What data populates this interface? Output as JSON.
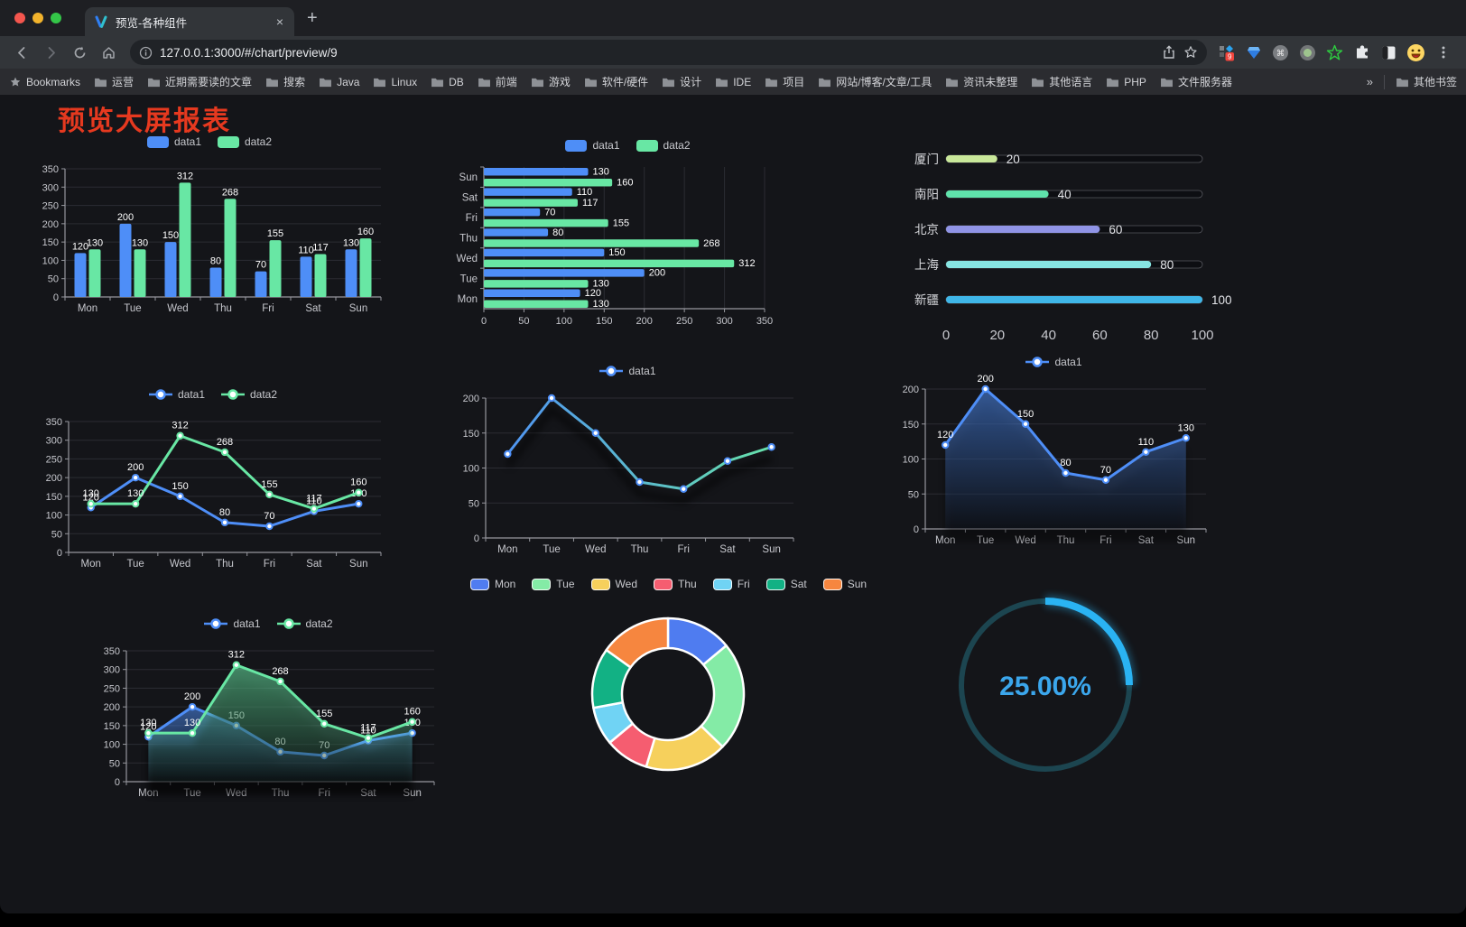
{
  "browser": {
    "tab": {
      "title": "预览-各种组件",
      "close": "×",
      "new_tab": "+"
    },
    "url": "127.0.0.1:3000/#/chart/preview/9",
    "extension_badge": "9",
    "bookmarks_label": "Bookmarks",
    "bookmarks": [
      "运营",
      "近期需要读的文章",
      "搜索",
      "Java",
      "Linux",
      "DB",
      "前端",
      "游戏",
      "软件/硬件",
      "设计",
      "IDE",
      "项目",
      "网站/博客/文章/工具",
      "资讯未整理",
      "其他语言",
      "PHP",
      "文件服务器"
    ],
    "bookmarks_overflow": "»",
    "other_bookmarks": "其他书签"
  },
  "page": {
    "title": "预览大屏报表",
    "title_color": "#e6391f"
  },
  "theme": {
    "axis": "#96979e",
    "grid": "#2b2c33",
    "tick_text": "#c6c7cd",
    "value_text": "#ffffff",
    "blue": "#4e8ef7",
    "green": "#68e7a4"
  },
  "chart_data": [
    {
      "id": "bar-grouped",
      "type": "bar",
      "legend": true,
      "labels": true,
      "categories": [
        "Mon",
        "Tue",
        "Wed",
        "Thu",
        "Fri",
        "Sat",
        "Sun"
      ],
      "series": [
        {
          "name": "data1",
          "color": "#4e8ef7",
          "values": [
            120,
            200,
            150,
            80,
            70,
            110,
            130
          ]
        },
        {
          "name": "data2",
          "color": "#68e7a4",
          "values": [
            130,
            130,
            312,
            268,
            155,
            117,
            160
          ]
        }
      ],
      "ylim": [
        0,
        350
      ],
      "ystep": 50
    },
    {
      "id": "bar-horizontal",
      "type": "bar-horizontal",
      "legend": true,
      "labels": true,
      "categories": [
        "Mon",
        "Tue",
        "Wed",
        "Thu",
        "Fri",
        "Sat",
        "Sun"
      ],
      "series": [
        {
          "name": "data1",
          "color": "#4e8ef7",
          "values": [
            120,
            200,
            150,
            80,
            70,
            110,
            130
          ]
        },
        {
          "name": "data2",
          "color": "#68e7a4",
          "values": [
            130,
            130,
            312,
            268,
            155,
            117,
            160
          ]
        }
      ],
      "xlim": [
        0,
        350
      ],
      "xstep": 50
    },
    {
      "id": "progress",
      "type": "bar-progress",
      "items": [
        {
          "label": "厦门",
          "value": 20,
          "color": "#c9e89a"
        },
        {
          "label": "南阳",
          "value": 40,
          "color": "#5fe3ab"
        },
        {
          "label": "北京",
          "value": 60,
          "color": "#9094e6"
        },
        {
          "label": "上海",
          "value": 80,
          "color": "#87e5e2"
        },
        {
          "label": "新疆",
          "value": 100,
          "color": "#3fb6e8"
        }
      ],
      "xlim": [
        0,
        100
      ],
      "xticks": [
        0,
        20,
        40,
        60,
        80,
        100
      ]
    },
    {
      "id": "line-two",
      "type": "line",
      "legend": true,
      "labels": true,
      "categories": [
        "Mon",
        "Tue",
        "Wed",
        "Thu",
        "Fri",
        "Sat",
        "Sun"
      ],
      "series": [
        {
          "name": "data1",
          "color": "#4e8ef7",
          "values": [
            120,
            200,
            150,
            80,
            70,
            110,
            130
          ]
        },
        {
          "name": "data2",
          "color": "#68e7a4",
          "values": [
            130,
            130,
            312,
            268,
            155,
            117,
            160
          ]
        }
      ],
      "ylim": [
        0,
        350
      ],
      "ystep": 50
    },
    {
      "id": "line-gradient",
      "type": "line",
      "legend": true,
      "labels": false,
      "shadow": true,
      "categories": [
        "Mon",
        "Tue",
        "Wed",
        "Thu",
        "Fri",
        "Sat",
        "Sun"
      ],
      "series": [
        {
          "name": "data1",
          "color": "#4e8ef7",
          "gradient": [
            "#4e8ef7",
            "#68e7a4"
          ],
          "values": [
            120,
            200,
            150,
            80,
            70,
            110,
            130
          ]
        }
      ],
      "ylim": [
        0,
        200
      ],
      "ystep": 50
    },
    {
      "id": "area-single",
      "type": "line",
      "legend": true,
      "labels": true,
      "shadow": true,
      "categories": [
        "Mon",
        "Tue",
        "Wed",
        "Thu",
        "Fri",
        "Sat",
        "Sun"
      ],
      "series": [
        {
          "name": "data1",
          "color": "#4e8ef7",
          "area": true,
          "values": [
            120,
            200,
            150,
            80,
            70,
            110,
            130
          ]
        }
      ],
      "ylim": [
        0,
        200
      ],
      "ystep": 50
    },
    {
      "id": "area-two",
      "type": "line",
      "legend": true,
      "labels": true,
      "shadow": true,
      "categories": [
        "Mon",
        "Tue",
        "Wed",
        "Thu",
        "Fri",
        "Sat",
        "Sun"
      ],
      "series": [
        {
          "name": "data1",
          "color": "#4e8ef7",
          "area": true,
          "values": [
            120,
            200,
            150,
            80,
            70,
            110,
            130
          ]
        },
        {
          "name": "data2",
          "color": "#68e7a4",
          "area": true,
          "values": [
            130,
            130,
            312,
            268,
            155,
            117,
            160
          ]
        }
      ],
      "ylim": [
        0,
        350
      ],
      "ystep": 50
    },
    {
      "id": "donut",
      "type": "pie",
      "items": [
        {
          "label": "Mon",
          "value": 120,
          "color": "#4f7cf0"
        },
        {
          "label": "Tue",
          "value": 200,
          "color": "#84eba6"
        },
        {
          "label": "Wed",
          "value": 150,
          "color": "#f6d05c"
        },
        {
          "label": "Thu",
          "value": 80,
          "color": "#f55d70"
        },
        {
          "label": "Fri",
          "value": 70,
          "color": "#70d3f4"
        },
        {
          "label": "Sat",
          "value": 110,
          "color": "#12b184"
        },
        {
          "label": "Sun",
          "value": 130,
          "color": "#f6863f"
        }
      ]
    },
    {
      "id": "gauge",
      "type": "gauge",
      "value": 25,
      "display": "25.00%",
      "color": "#2ab3f3",
      "track_color": "#1c4550",
      "text_color": "#3ba6ec"
    }
  ]
}
